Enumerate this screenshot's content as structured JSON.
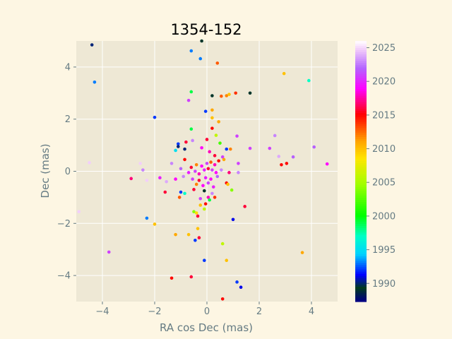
{
  "chart_data": {
    "type": "scatter",
    "title": "1354-152",
    "xlabel": "RA cos Dec (mas)",
    "ylabel": "Dec (mas)",
    "xlim": [
      -5,
      5
    ],
    "ylim": [
      -5,
      5
    ],
    "xticks": [
      -4,
      -2,
      0,
      2,
      4
    ],
    "yticks": [
      -4,
      -2,
      0,
      2,
      4
    ],
    "grid": true,
    "colorbar": {
      "min": 1987.3,
      "max": 2026.0,
      "ticks": [
        1990,
        1995,
        2000,
        2005,
        2010,
        2015,
        2020,
        2025
      ],
      "colormap": "gist_ncar"
    },
    "points": [
      {
        "x": -4.4,
        "y": 4.85,
        "year": 1990
      },
      {
        "x": -0.2,
        "y": 5.0,
        "year": 1989
      },
      {
        "x": -0.6,
        "y": 4.62,
        "year": 1993
      },
      {
        "x": -0.25,
        "y": 4.32,
        "year": 1993
      },
      {
        "x": 0.4,
        "y": 4.15,
        "year": 2013
      },
      {
        "x": -4.3,
        "y": 3.42,
        "year": 1993
      },
      {
        "x": 2.95,
        "y": 3.75,
        "year": 2010
      },
      {
        "x": 3.9,
        "y": 3.48,
        "year": 1997
      },
      {
        "x": -0.6,
        "y": 3.05,
        "year": 1999
      },
      {
        "x": 0.2,
        "y": 2.9,
        "year": 1989
      },
      {
        "x": 0.55,
        "y": 2.88,
        "year": 2013
      },
      {
        "x": 0.75,
        "y": 2.9,
        "year": 2012
      },
      {
        "x": 0.85,
        "y": 2.95,
        "year": 2010
      },
      {
        "x": 1.1,
        "y": 3.0,
        "year": 2014
      },
      {
        "x": 1.65,
        "y": 3.0,
        "year": 1989
      },
      {
        "x": -0.7,
        "y": 2.72,
        "year": 2021
      },
      {
        "x": -0.05,
        "y": 2.3,
        "year": 1992
      },
      {
        "x": 0.2,
        "y": 2.35,
        "year": 2011
      },
      {
        "x": -2.0,
        "y": 2.07,
        "year": 1992
      },
      {
        "x": 0.2,
        "y": 2.05,
        "year": 2010
      },
      {
        "x": 0.45,
        "y": 1.9,
        "year": 2011
      },
      {
        "x": -0.6,
        "y": 1.62,
        "year": 1999
      },
      {
        "x": 0.2,
        "y": 1.65,
        "year": 2015
      },
      {
        "x": 0.35,
        "y": 1.38,
        "year": 2006
      },
      {
        "x": 1.15,
        "y": 1.35,
        "year": 2021
      },
      {
        "x": 2.6,
        "y": 1.37,
        "year": 2023
      },
      {
        "x": 0.0,
        "y": 1.22,
        "year": 2016
      },
      {
        "x": -0.8,
        "y": 1.12,
        "year": 2016
      },
      {
        "x": -0.55,
        "y": 1.18,
        "year": 2023
      },
      {
        "x": -1.1,
        "y": 1.05,
        "year": 1992
      },
      {
        "x": -1.1,
        "y": 0.95,
        "year": 1990
      },
      {
        "x": 0.5,
        "y": 1.08,
        "year": 2002
      },
      {
        "x": 1.65,
        "y": 0.88,
        "year": 2021
      },
      {
        "x": 2.4,
        "y": 0.88,
        "year": 2021
      },
      {
        "x": 4.1,
        "y": 0.93,
        "year": 2022
      },
      {
        "x": -1.2,
        "y": 0.8,
        "year": 1995
      },
      {
        "x": -0.85,
        "y": 0.85,
        "year": 1990
      },
      {
        "x": 0.75,
        "y": 0.85,
        "year": 1992
      },
      {
        "x": 0.9,
        "y": 0.85,
        "year": 2012
      },
      {
        "x": -0.2,
        "y": 0.9,
        "year": 2019
      },
      {
        "x": 0.1,
        "y": 0.75,
        "year": 2018
      },
      {
        "x": 0.3,
        "y": 0.6,
        "year": 2016
      },
      {
        "x": 0.6,
        "y": 0.55,
        "year": 2021
      },
      {
        "x": 2.75,
        "y": 0.57,
        "year": 2024
      },
      {
        "x": 3.3,
        "y": 0.55,
        "year": 2022
      },
      {
        "x": -2.55,
        "y": 0.3,
        "year": 2025
      },
      {
        "x": -4.5,
        "y": 0.33,
        "year": 2025
      },
      {
        "x": -1.35,
        "y": 0.3,
        "year": 2023
      },
      {
        "x": -0.85,
        "y": 0.45,
        "year": 2015
      },
      {
        "x": 0.65,
        "y": 0.45,
        "year": 2011
      },
      {
        "x": 1.2,
        "y": 0.3,
        "year": 2021
      },
      {
        "x": 2.85,
        "y": 0.25,
        "year": 2015
      },
      {
        "x": 3.05,
        "y": 0.3,
        "year": 2015
      },
      {
        "x": 4.6,
        "y": 0.28,
        "year": 2019
      },
      {
        "x": -2.45,
        "y": 0.05,
        "year": 2023
      },
      {
        "x": -1.0,
        "y": 0.1,
        "year": 2022
      },
      {
        "x": -0.6,
        "y": 0.15,
        "year": 2016
      },
      {
        "x": -0.4,
        "y": 0.25,
        "year": 2012
      },
      {
        "x": -0.2,
        "y": 0.2,
        "year": 2019
      },
      {
        "x": 0.0,
        "y": 0.3,
        "year": 2021
      },
      {
        "x": 0.15,
        "y": 0.35,
        "year": 2013
      },
      {
        "x": 0.3,
        "y": 0.25,
        "year": 2018
      },
      {
        "x": 0.45,
        "y": 0.4,
        "year": 2015
      },
      {
        "x": -0.7,
        "y": -0.05,
        "year": 2020
      },
      {
        "x": -0.45,
        "y": 0.0,
        "year": 2021
      },
      {
        "x": -0.3,
        "y": -0.1,
        "year": 2018
      },
      {
        "x": -0.1,
        "y": 0.05,
        "year": 2020
      },
      {
        "x": 0.05,
        "y": 0.1,
        "year": 2016
      },
      {
        "x": 0.2,
        "y": 0.05,
        "year": 2021
      },
      {
        "x": 0.35,
        "y": -0.05,
        "year": 2019
      },
      {
        "x": 0.55,
        "y": 0.05,
        "year": 2023
      },
      {
        "x": 0.85,
        "y": -0.05,
        "year": 2017
      },
      {
        "x": 1.2,
        "y": -0.05,
        "year": 2023
      },
      {
        "x": -2.9,
        "y": -0.28,
        "year": 2017
      },
      {
        "x": -2.3,
        "y": -0.35,
        "year": 2025
      },
      {
        "x": -1.8,
        "y": -0.25,
        "year": 2020
      },
      {
        "x": -1.55,
        "y": -0.4,
        "year": 2024
      },
      {
        "x": -1.2,
        "y": -0.3,
        "year": 2019
      },
      {
        "x": -0.9,
        "y": -0.2,
        "year": 2023
      },
      {
        "x": -0.55,
        "y": -0.3,
        "year": 2021
      },
      {
        "x": -0.3,
        "y": -0.35,
        "year": 2016
      },
      {
        "x": -0.05,
        "y": -0.25,
        "year": 2020
      },
      {
        "x": 0.15,
        "y": -0.3,
        "year": 2019
      },
      {
        "x": 0.4,
        "y": -0.2,
        "year": 2022
      },
      {
        "x": 0.75,
        "y": -0.45,
        "year": 2015
      },
      {
        "x": 0.8,
        "y": -0.5,
        "year": 2010
      },
      {
        "x": -0.4,
        "y": -0.5,
        "year": 2012
      },
      {
        "x": -0.15,
        "y": -0.55,
        "year": 2019
      },
      {
        "x": 0.05,
        "y": -0.45,
        "year": 2021
      },
      {
        "x": 0.25,
        "y": -0.6,
        "year": 2020
      },
      {
        "x": 0.95,
        "y": -0.72,
        "year": 2004
      },
      {
        "x": -1.6,
        "y": -0.8,
        "year": 2016
      },
      {
        "x": -1.0,
        "y": -0.8,
        "year": 1992
      },
      {
        "x": -0.85,
        "y": -0.85,
        "year": 1997
      },
      {
        "x": -0.5,
        "y": -0.7,
        "year": 2016
      },
      {
        "x": -0.1,
        "y": -0.75,
        "year": 1989
      },
      {
        "x": 0.2,
        "y": -0.85,
        "year": 2023
      },
      {
        "x": -1.05,
        "y": -1.0,
        "year": 2013
      },
      {
        "x": -0.25,
        "y": -1.05,
        "year": 2021
      },
      {
        "x": 0.05,
        "y": -1.0,
        "year": 2018
      },
      {
        "x": 0.3,
        "y": -1.0,
        "year": 2014
      },
      {
        "x": 0.1,
        "y": -1.1,
        "year": 1999
      },
      {
        "x": -0.05,
        "y": -1.25,
        "year": 2015
      },
      {
        "x": -0.25,
        "y": -1.3,
        "year": 2010
      },
      {
        "x": 1.45,
        "y": -1.35,
        "year": 2016
      },
      {
        "x": -0.1,
        "y": -1.45,
        "year": 2006
      },
      {
        "x": -0.5,
        "y": -1.55,
        "year": 2004
      },
      {
        "x": -0.4,
        "y": -1.6,
        "year": 2009
      },
      {
        "x": -4.9,
        "y": -1.55,
        "year": 2025
      },
      {
        "x": -0.35,
        "y": -1.72,
        "year": 2016
      },
      {
        "x": -2.3,
        "y": -1.8,
        "year": 1993
      },
      {
        "x": 1.0,
        "y": -1.85,
        "year": 1991
      },
      {
        "x": -2.0,
        "y": -2.03,
        "year": 2010
      },
      {
        "x": -0.35,
        "y": -2.2,
        "year": 2010
      },
      {
        "x": -1.2,
        "y": -2.43,
        "year": 2011
      },
      {
        "x": -0.7,
        "y": -2.43,
        "year": 2010
      },
      {
        "x": -0.3,
        "y": -2.55,
        "year": 2016
      },
      {
        "x": -0.45,
        "y": -2.65,
        "year": 1992
      },
      {
        "x": 0.6,
        "y": -2.78,
        "year": 2006
      },
      {
        "x": -3.75,
        "y": -3.1,
        "year": 2021
      },
      {
        "x": 3.65,
        "y": -3.12,
        "year": 2011
      },
      {
        "x": -0.1,
        "y": -3.42,
        "year": 1992
      },
      {
        "x": 0.75,
        "y": -3.42,
        "year": 2010
      },
      {
        "x": -1.35,
        "y": -4.1,
        "year": 2015
      },
      {
        "x": -0.6,
        "y": -4.05,
        "year": 2016
      },
      {
        "x": 1.15,
        "y": -4.25,
        "year": 1992
      },
      {
        "x": 1.3,
        "y": -4.45,
        "year": 1991
      },
      {
        "x": 0.6,
        "y": -4.9,
        "year": 2015
      }
    ]
  }
}
